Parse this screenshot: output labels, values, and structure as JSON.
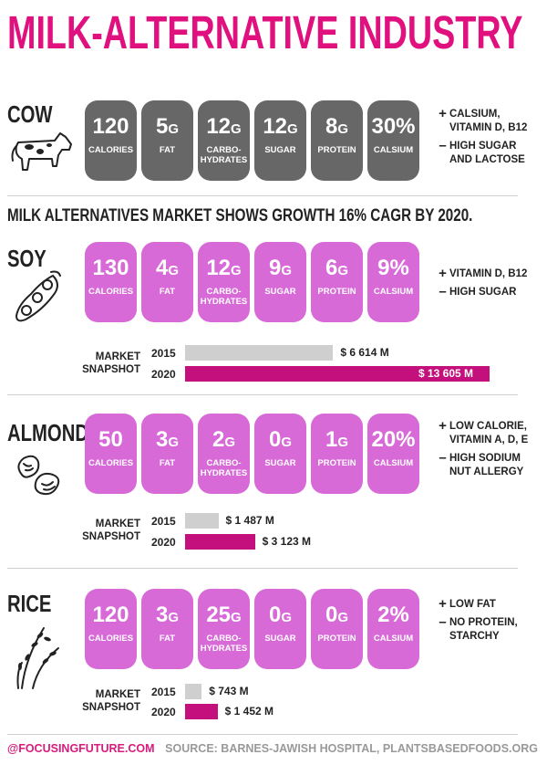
{
  "title": "MILK-ALTERNATIVE INDUSTRY",
  "growth_headline": "MILK ALTERNATIVES MARKET SHOWS GROWTH 16% CAGR BY 2020.",
  "colors": {
    "brand_pink": "#e0117f",
    "tile_gray": "#676767",
    "tile_pink": "#d86ad8",
    "bar_gray": "#cfcfcf",
    "bar_pink": "#c4107c"
  },
  "sections": {
    "cow": {
      "name": "COW",
      "icon": "cow-icon",
      "stats": [
        {
          "value": "120",
          "unit": "",
          "label": "CALORIES"
        },
        {
          "value": "5",
          "unit": "G",
          "label": "FAT"
        },
        {
          "value": "12",
          "unit": "G",
          "label": "CARBO-\nHYDRATES"
        },
        {
          "value": "12",
          "unit": "G",
          "label": "SUGAR"
        },
        {
          "value": "8",
          "unit": "G",
          "label": "PROTEIN"
        },
        {
          "value": "30%",
          "unit": "",
          "label": "CALSIUM"
        }
      ],
      "pros": "CALSIUM,\nVITAMIN D, B12",
      "cons": "HIGH SUGAR\nAND LACTOSE"
    },
    "soy": {
      "name": "SOY",
      "icon": "soybean-icon",
      "stats": [
        {
          "value": "130",
          "unit": "",
          "label": "CALORIES"
        },
        {
          "value": "4",
          "unit": "G",
          "label": "FAT"
        },
        {
          "value": "12",
          "unit": "G",
          "label": "CARBO-\nHYDRATES"
        },
        {
          "value": "9",
          "unit": "G",
          "label": "SUGAR"
        },
        {
          "value": "6",
          "unit": "G",
          "label": "PROTEIN"
        },
        {
          "value": "9%",
          "unit": "",
          "label": "CALSIUM"
        }
      ],
      "pros": "VITAMIN D, B12",
      "cons": "HIGH SUGAR",
      "market": {
        "label": "MARKET\nSNAPSHOT",
        "year1": "2015",
        "value1": 6614,
        "text1": "$ 6 614 M",
        "year2": "2020",
        "value2": 13605,
        "text2": "$ 13 605 M"
      }
    },
    "almond": {
      "name": "ALMOND",
      "icon": "almond-icon",
      "stats": [
        {
          "value": "50",
          "unit": "",
          "label": "CALORIES"
        },
        {
          "value": "3",
          "unit": "G",
          "label": "FAT"
        },
        {
          "value": "2",
          "unit": "G",
          "label": "CARBO-\nHYDRATES"
        },
        {
          "value": "0",
          "unit": "G",
          "label": "SUGAR"
        },
        {
          "value": "1",
          "unit": "G",
          "label": "PROTEIN"
        },
        {
          "value": "20%",
          "unit": "",
          "label": "CALSIUM"
        }
      ],
      "pros": "LOW CALORIE,\nVITAMIN A, D, E",
      "cons": "HIGH SODIUM\nNUT ALLERGY",
      "market": {
        "label": "MARKET\nSNAPSHOT",
        "year1": "2015",
        "value1": 1487,
        "text1": "$ 1 487 M",
        "year2": "2020",
        "value2": 3123,
        "text2": "$ 3 123 M"
      }
    },
    "rice": {
      "name": "RICE",
      "icon": "rice-icon",
      "stats": [
        {
          "value": "120",
          "unit": "",
          "label": "CALORIES"
        },
        {
          "value": "3",
          "unit": "G",
          "label": "FAT"
        },
        {
          "value": "25",
          "unit": "G",
          "label": "CARBO-\nHYDRATES"
        },
        {
          "value": "0",
          "unit": "G",
          "label": "SUGAR"
        },
        {
          "value": "0",
          "unit": "G",
          "label": "PROTEIN"
        },
        {
          "value": "2%",
          "unit": "",
          "label": "CALSIUM"
        }
      ],
      "pros": "LOW FAT",
      "cons": "NO PROTEIN,\nSTARCHY",
      "market": {
        "label": "MARKET\nSNAPSHOT",
        "year1": "2015",
        "value1": 743,
        "text1": "$ 743 M",
        "year2": "2020",
        "value2": 1452,
        "text2": "$ 1 452 M"
      }
    }
  },
  "footer": {
    "handle": "@FOCUSINGFUTURE.COM",
    "source": "SOURCE: BARNES-JAWISH HOSPITAL, PLANTSBASEDFOODS.ORG"
  }
}
